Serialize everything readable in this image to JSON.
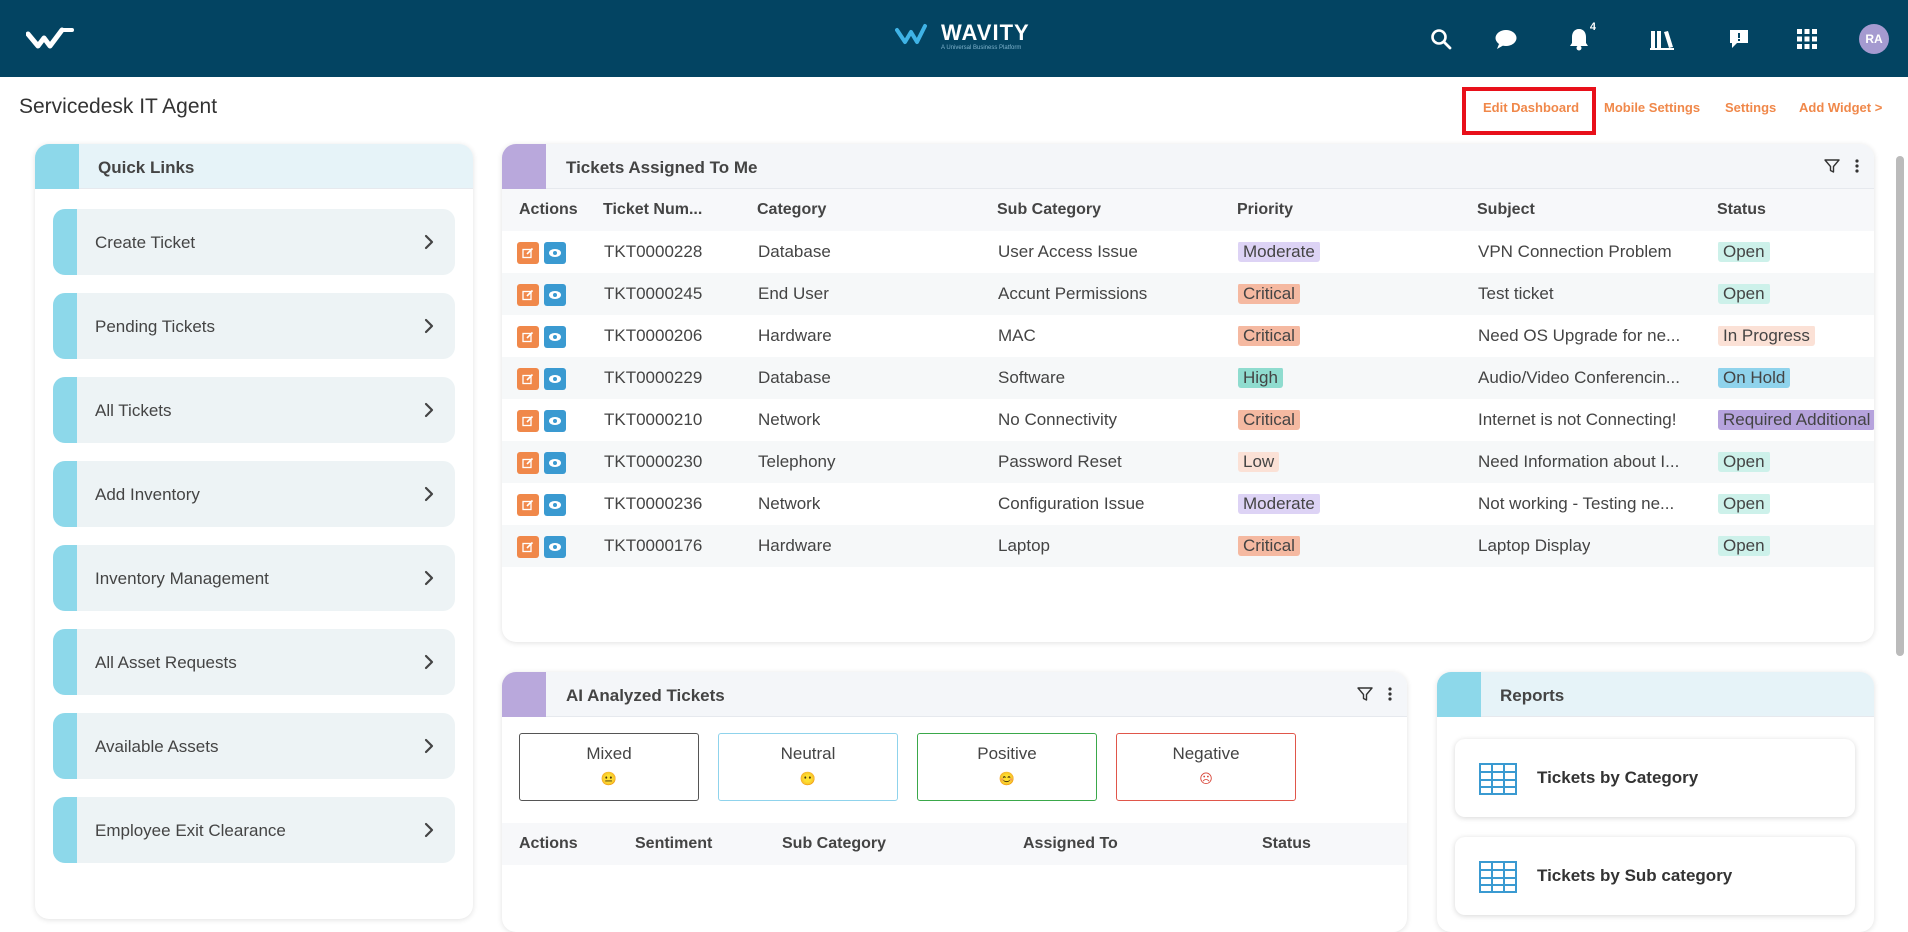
{
  "header": {
    "brand_name": "WAVITY",
    "brand_tagline": "A Universal Business Platform",
    "notification_count": "4",
    "avatar_initials": "RA"
  },
  "page": {
    "title": "Servicedesk IT Agent",
    "actions": {
      "edit_dashboard": "Edit Dashboard",
      "mobile_settings": "Mobile Settings",
      "settings": "Settings",
      "add_widget": "Add Widget >"
    }
  },
  "quick_links": {
    "title": "Quick Links",
    "items": [
      {
        "label": "Create Ticket"
      },
      {
        "label": "Pending Tickets"
      },
      {
        "label": "All Tickets"
      },
      {
        "label": "Add Inventory"
      },
      {
        "label": "Inventory Management"
      },
      {
        "label": "All Asset Requests"
      },
      {
        "label": "Available Assets"
      },
      {
        "label": "Employee Exit Clearance"
      }
    ]
  },
  "tickets": {
    "title": "Tickets Assigned To Me",
    "columns": {
      "actions": "Actions",
      "number": "Ticket Num...",
      "category": "Category",
      "subcategory": "Sub Category",
      "priority": "Priority",
      "subject": "Subject",
      "status": "Status"
    },
    "rows": [
      {
        "number": "TKT0000228",
        "category": "Database",
        "subcategory": "User Access Issue",
        "priority": "Moderate",
        "subject": "VPN Connection Problem",
        "status": "Open"
      },
      {
        "number": "TKT0000245",
        "category": "End User",
        "subcategory": "Accunt Permissions",
        "priority": "Critical",
        "subject": "Test ticket",
        "status": "Open"
      },
      {
        "number": "TKT0000206",
        "category": "Hardware",
        "subcategory": "MAC",
        "priority": "Critical",
        "subject": "Need OS Upgrade for ne...",
        "status": "In Progress"
      },
      {
        "number": "TKT0000229",
        "category": "Database",
        "subcategory": "Software",
        "priority": "High",
        "subject": "Audio/Video Conferencin...",
        "status": "On Hold"
      },
      {
        "number": "TKT0000210",
        "category": "Network",
        "subcategory": "No Connectivity",
        "priority": "Critical",
        "subject": "Internet is not Connecting!",
        "status": "Required Additional"
      },
      {
        "number": "TKT0000230",
        "category": "Telephony",
        "subcategory": "Password Reset",
        "priority": "Low",
        "subject": "Need Information about I...",
        "status": "Open"
      },
      {
        "number": "TKT0000236",
        "category": "Network",
        "subcategory": "Configuration Issue",
        "priority": "Moderate",
        "subject": "Not working - Testing ne...",
        "status": "Open"
      },
      {
        "number": "TKT0000176",
        "category": "Hardware",
        "subcategory": "Laptop",
        "priority": "Critical",
        "subject": "Laptop Display",
        "status": "Open"
      }
    ]
  },
  "priority_colors": {
    "Moderate": {
      "bg": "#ddd3f5",
      "fg": "#444444"
    },
    "Critical": {
      "bg": "#f5b9a1",
      "fg": "#444444"
    },
    "High": {
      "bg": "#8fdccf",
      "fg": "#444444"
    },
    "Low": {
      "bg": "#fbe1d6",
      "fg": "#444444"
    }
  },
  "status_colors": {
    "Open": {
      "bg": "#cdf1ea",
      "fg": "#444444"
    },
    "In Progress": {
      "bg": "#fbe1d6",
      "fg": "#444444"
    },
    "On Hold": {
      "bg": "#8fd3ec",
      "fg": "#444444"
    },
    "Required Additional": {
      "bg": "#b6a3dd",
      "fg": "#444444"
    }
  },
  "ai_tickets": {
    "title": "AI Analyzed Tickets",
    "sentiments": [
      {
        "label": "Mixed",
        "border": "#555555",
        "face": "#555555",
        "glyph": "😐"
      },
      {
        "label": "Neutral",
        "border": "#8fd3ec",
        "face": "#8fd3ec",
        "glyph": "😶"
      },
      {
        "label": "Positive",
        "border": "#3aa84a",
        "face": "#2e9e3e",
        "glyph": "😊"
      },
      {
        "label": "Negative",
        "border": "#e0564a",
        "face": "#d9473a",
        "glyph": "☹"
      }
    ],
    "columns": {
      "actions": "Actions",
      "sentiment": "Sentiment",
      "subcategory": "Sub Category",
      "assigned": "Assigned To",
      "status": "Status"
    }
  },
  "reports": {
    "title": "Reports",
    "items": [
      {
        "label": "Tickets by Category"
      },
      {
        "label": "Tickets by Sub category"
      }
    ]
  },
  "colors": {
    "topbar": "#034462",
    "accent_orange": "#f0884a",
    "view_blue": "#3a9ad1",
    "quicklink_accent": "#8dd8ea",
    "ticket_panel_accent": "#b9a8dc"
  },
  "icons": [
    "search-icon",
    "chat-icon",
    "bell-icon",
    "library-icon",
    "feedback-icon",
    "apps-grid-icon",
    "filter-icon",
    "more-icon",
    "chevron-right-icon",
    "edit-icon",
    "view-icon",
    "table-icon"
  ]
}
